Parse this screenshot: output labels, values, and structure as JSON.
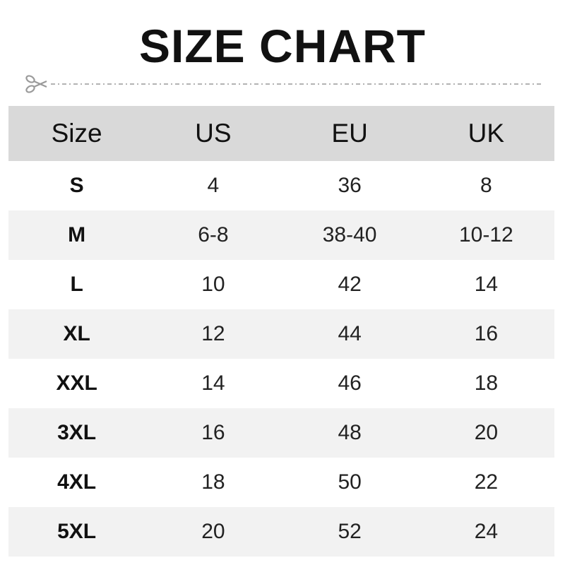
{
  "title": "SIZE CHART",
  "cut_icon": "scissors-icon",
  "colors": {
    "header_bg": "#d9d9d9",
    "alt_row_bg": "#f2f2f2",
    "cut_line": "#9a9a9a"
  },
  "table": {
    "headers": [
      "Size",
      "US",
      "EU",
      "UK"
    ],
    "rows": [
      [
        "S",
        "4",
        "36",
        "8"
      ],
      [
        "M",
        "6-8",
        "38-40",
        "10-12"
      ],
      [
        "L",
        "10",
        "42",
        "14"
      ],
      [
        "XL",
        "12",
        "44",
        "16"
      ],
      [
        "XXL",
        "14",
        "46",
        "18"
      ],
      [
        "3XL",
        "16",
        "48",
        "20"
      ],
      [
        "4XL",
        "18",
        "50",
        "22"
      ],
      [
        "5XL",
        "20",
        "52",
        "24"
      ]
    ]
  }
}
